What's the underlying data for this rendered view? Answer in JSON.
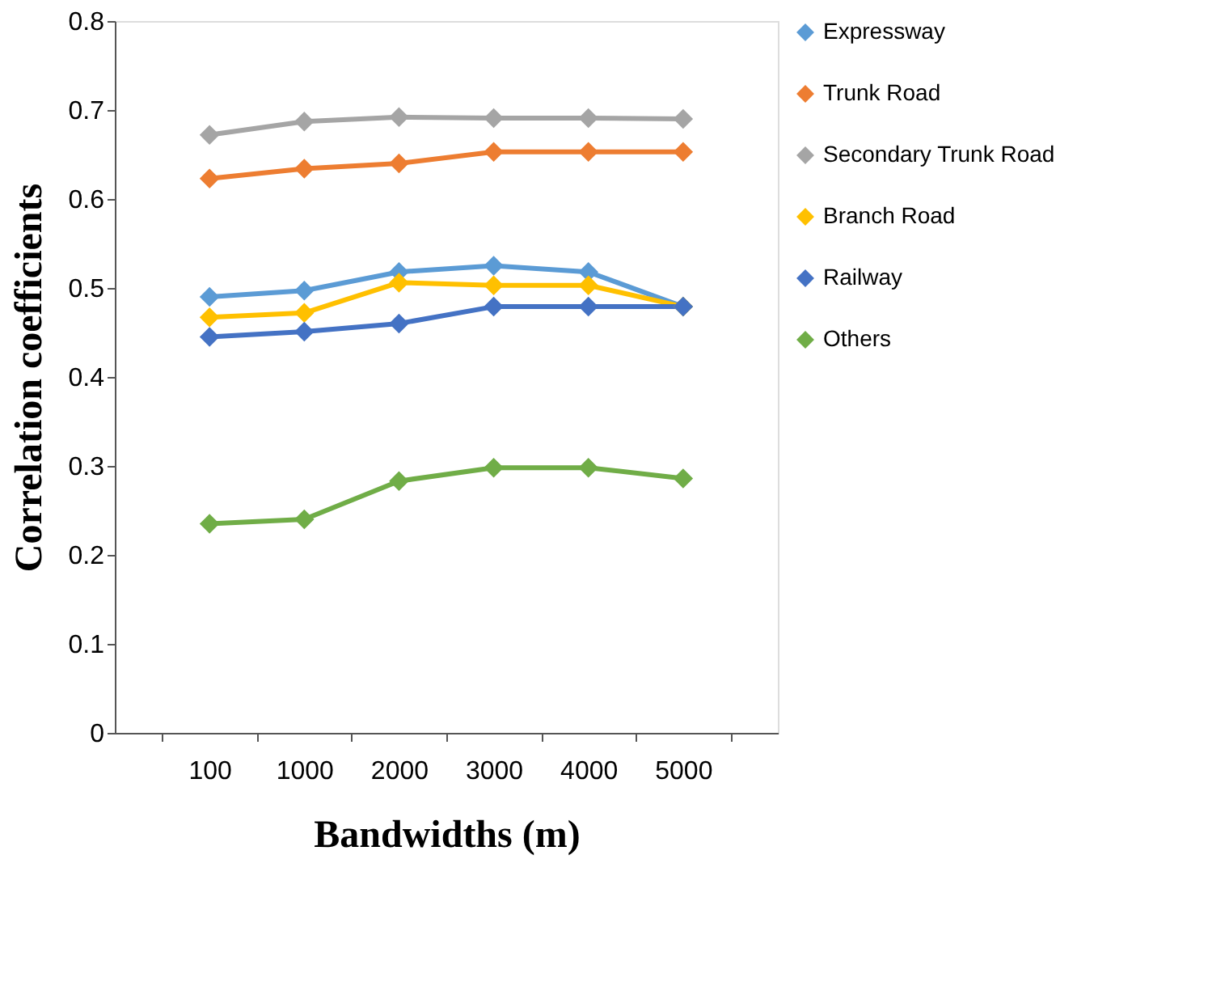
{
  "chart_data": {
    "type": "line",
    "xlabel": "Bandwidths (m)",
    "ylabel": "Correlation coefficients",
    "categories": [
      "100",
      "1000",
      "2000",
      "3000",
      "4000",
      "5000"
    ],
    "ylim": [
      0,
      0.8
    ],
    "yticks": [
      0,
      0.1,
      0.2,
      0.3,
      0.4,
      0.5,
      0.6,
      0.7,
      0.8
    ],
    "grid": false,
    "legend": "right",
    "marker": "diamond",
    "line_style": "solid",
    "series": [
      {
        "name": "Expressway",
        "color": "#5b9bd5",
        "values": [
          0.49,
          0.497,
          0.518,
          0.525,
          0.518,
          0.479
        ]
      },
      {
        "name": "Trunk Road",
        "color": "#ed7d31",
        "values": [
          0.623,
          0.634,
          0.64,
          0.653,
          0.653,
          0.653
        ]
      },
      {
        "name": "Secondary Trunk Road",
        "color": "#a5a5a5",
        "values": [
          0.672,
          0.687,
          0.692,
          0.691,
          0.691,
          0.69
        ]
      },
      {
        "name": "Branch Road",
        "color": "#ffc000",
        "values": [
          0.467,
          0.472,
          0.506,
          0.503,
          0.503,
          0.479
        ]
      },
      {
        "name": "Railway",
        "color": "#4472c4",
        "values": [
          0.445,
          0.451,
          0.46,
          0.479,
          0.479,
          0.479
        ]
      },
      {
        "name": "Others",
        "color": "#70ad47",
        "values": [
          0.235,
          0.24,
          0.283,
          0.298,
          0.298,
          0.286
        ]
      }
    ]
  }
}
